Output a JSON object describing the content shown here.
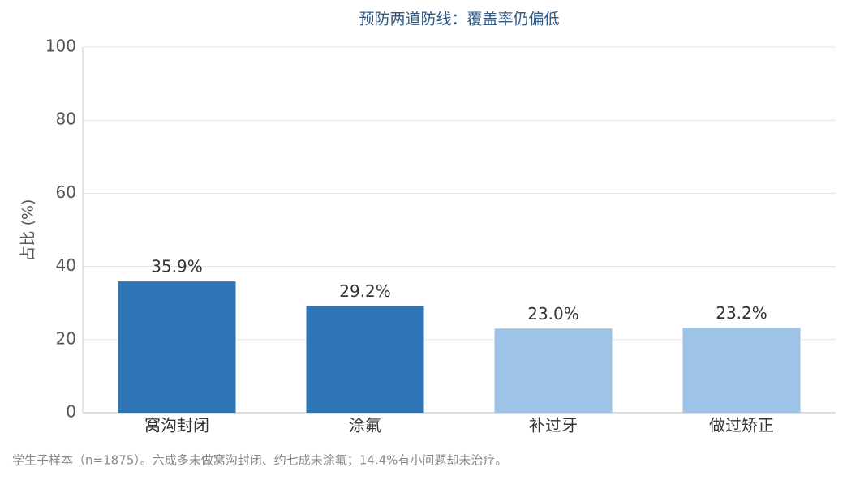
{
  "chart_data": {
    "type": "bar",
    "title": "预防两道防线：覆盖率仍偏低",
    "y_label": "占比 (%)",
    "categories": [
      "窝沟封闭",
      "涂氟",
      "补过牙",
      "做过矫正"
    ],
    "values": [
      35.9,
      29.2,
      23.0,
      23.2
    ],
    "value_labels": [
      "35.9%",
      "29.2%",
      "23.0%",
      "23.2%"
    ],
    "colors": [
      "#2e75b6",
      "#2e75b6",
      "#9dc3e6",
      "#9dc3e6"
    ],
    "ylim": [
      0,
      100
    ],
    "yticks": [
      0,
      20,
      40,
      60,
      80,
      100
    ],
    "grid": true,
    "footnote": "学生子样本（n=1875）。六成多未做窝沟封闭、约七成未涂氟；14.4%有小问题却未治疗。"
  }
}
